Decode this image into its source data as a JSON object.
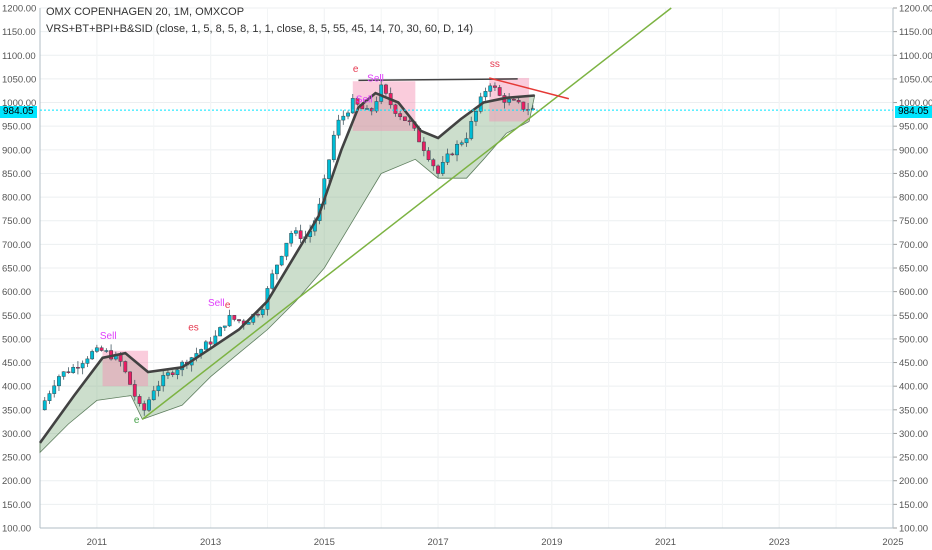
{
  "header": {
    "title_line": "OMX COPENHAGEN 20, 1M, OMXCOP",
    "indicator_line": "VRS+BT+BPI+B&SID (close, 1, 5, 8, 5, 8, 1, 1, close, 8, 5, 55, 45, 14, 70, 30, 60, D, 14)"
  },
  "last_price": "984.05",
  "colors": {
    "bull": "#00bcd4",
    "bear": "#e91e63",
    "cloud_green": "#8fb58f",
    "cloud_pink": "#f48fb1",
    "trendline_green": "#7cb342",
    "trendline_red": "#e53935",
    "ma": "#424242",
    "price_line": "#00e5ff"
  },
  "chart_data": {
    "type": "candlestick",
    "title": "OMX COPENHAGEN 20, 1M, OMXCOP",
    "interval": "1M",
    "ylim": [
      100,
      1200
    ],
    "xlim": [
      2010.0,
      2025.0
    ],
    "y_ticks": [
      "100.00",
      "150.00",
      "200.00",
      "250.00",
      "300.00",
      "350.00",
      "400.00",
      "450.00",
      "500.00",
      "550.00",
      "600.00",
      "650.00",
      "700.00",
      "750.00",
      "800.00",
      "850.00",
      "900.00",
      "950.00",
      "1000.00",
      "1050.00",
      "1100.00",
      "1150.00",
      "1200.00"
    ],
    "x_ticks": [
      "2011",
      "2013",
      "2015",
      "2017",
      "2019",
      "2021",
      "2023",
      "2025"
    ],
    "last_price": 984.05,
    "price_path": [
      [
        2010.0,
        350
      ],
      [
        2010.3,
        420
      ],
      [
        2010.6,
        440
      ],
      [
        2010.9,
        470
      ],
      [
        2011.1,
        475
      ],
      [
        2011.4,
        455
      ],
      [
        2011.6,
        400
      ],
      [
        2011.8,
        340
      ],
      [
        2012.0,
        395
      ],
      [
        2012.3,
        430
      ],
      [
        2012.6,
        455
      ],
      [
        2012.9,
        485
      ],
      [
        2013.1,
        505
      ],
      [
        2013.3,
        545
      ],
      [
        2013.6,
        535
      ],
      [
        2013.9,
        565
      ],
      [
        2014.1,
        640
      ],
      [
        2014.4,
        725
      ],
      [
        2014.7,
        715
      ],
      [
        2014.9,
        770
      ],
      [
        2015.0,
        830
      ],
      [
        2015.2,
        950
      ],
      [
        2015.5,
        1000
      ],
      [
        2015.8,
        975
      ],
      [
        2016.0,
        1030
      ],
      [
        2016.2,
        990
      ],
      [
        2016.5,
        955
      ],
      [
        2016.8,
        895
      ],
      [
        2017.0,
        850
      ],
      [
        2017.2,
        890
      ],
      [
        2017.5,
        930
      ],
      [
        2017.7,
        990
      ],
      [
        2017.9,
        1045
      ],
      [
        2018.1,
        1010
      ],
      [
        2018.3,
        1000
      ],
      [
        2018.5,
        990
      ],
      [
        2018.7,
        984.05
      ]
    ],
    "moving_average": [
      [
        2010.0,
        280
      ],
      [
        2010.6,
        380
      ],
      [
        2011.1,
        460
      ],
      [
        2011.5,
        470
      ],
      [
        2011.9,
        430
      ],
      [
        2012.5,
        440
      ],
      [
        2013.0,
        480
      ],
      [
        2013.5,
        520
      ],
      [
        2014.0,
        580
      ],
      [
        2014.5,
        680
      ],
      [
        2014.9,
        760
      ],
      [
        2015.3,
        900
      ],
      [
        2015.6,
        990
      ],
      [
        2015.9,
        1020
      ],
      [
        2016.3,
        1000
      ],
      [
        2016.7,
        940
      ],
      [
        2017.0,
        925
      ],
      [
        2017.4,
        965
      ],
      [
        2017.8,
        1000
      ],
      [
        2018.2,
        1010
      ],
      [
        2018.7,
        1015
      ]
    ],
    "cloud_lower": [
      [
        2010.0,
        260
      ],
      [
        2010.5,
        320
      ],
      [
        2011.0,
        370
      ],
      [
        2011.6,
        380
      ],
      [
        2011.8,
        330
      ],
      [
        2012.5,
        360
      ],
      [
        2013.0,
        420
      ],
      [
        2013.5,
        470
      ],
      [
        2014.0,
        520
      ],
      [
        2014.5,
        580
      ],
      [
        2015.0,
        650
      ],
      [
        2015.5,
        750
      ],
      [
        2016.0,
        850
      ],
      [
        2016.6,
        880
      ],
      [
        2017.0,
        840
      ],
      [
        2017.5,
        840
      ],
      [
        2017.8,
        880
      ],
      [
        2018.2,
        935
      ],
      [
        2018.6,
        960
      ]
    ],
    "trendlines": [
      {
        "color": "trendline_green",
        "points": [
          [
            2011.8,
            330
          ],
          [
            2021.1,
            1200
          ]
        ]
      },
      {
        "color": "ma",
        "points": [
          [
            2015.6,
            1047
          ],
          [
            2018.4,
            1050
          ]
        ]
      },
      {
        "color": "trendline_red",
        "points": [
          [
            2017.9,
            1052
          ],
          [
            2019.3,
            1008
          ]
        ]
      }
    ],
    "annotations": [
      {
        "text": "Sell",
        "x": 2011.2,
        "y": 500
      },
      {
        "text": "e",
        "x": 2011.7,
        "y": 322
      },
      {
        "text": "es",
        "x": 2012.7,
        "y": 518
      },
      {
        "text": "Sell",
        "x": 2013.1,
        "y": 570
      },
      {
        "text": "e",
        "x": 2013.3,
        "y": 565
      },
      {
        "text": "e",
        "x": 2015.55,
        "y": 1065
      },
      {
        "text": "Sell",
        "x": 2015.9,
        "y": 1045
      },
      {
        "text": "Sell",
        "x": 2015.7,
        "y": 1000
      },
      {
        "text": "ss",
        "x": 2018.0,
        "y": 1075
      }
    ]
  }
}
